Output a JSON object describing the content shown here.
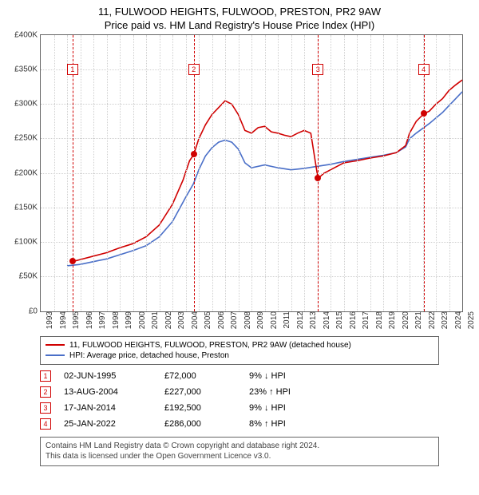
{
  "title": "11, FULWOOD HEIGHTS, FULWOOD, PRESTON, PR2 9AW",
  "subtitle": "Price paid vs. HM Land Registry's House Price Index (HPI)",
  "title_fontsize": 13,
  "colors": {
    "series_price": "#d00000",
    "series_hpi": "#4a6fc8",
    "grid": "#cfcfcf",
    "border": "#666666",
    "background": "#ffffff",
    "marker_fill": "#d00000",
    "marker_box_border": "#d00000",
    "footer_text": "#444444"
  },
  "chart": {
    "type": "line",
    "x_years": [
      1993,
      1994,
      1995,
      1996,
      1997,
      1998,
      1999,
      2000,
      2001,
      2002,
      2003,
      2004,
      2005,
      2006,
      2007,
      2008,
      2009,
      2010,
      2011,
      2012,
      2013,
      2014,
      2015,
      2016,
      2017,
      2018,
      2019,
      2020,
      2021,
      2022,
      2023,
      2024,
      2025
    ],
    "y_ticks": [
      0,
      50000,
      100000,
      150000,
      200000,
      250000,
      300000,
      350000,
      400000
    ],
    "y_tick_labels": [
      "£0",
      "£50K",
      "£100K",
      "£150K",
      "£200K",
      "£250K",
      "£300K",
      "£350K",
      "£400K"
    ],
    "ylim": [
      0,
      400000
    ],
    "line_width": 1.6,
    "grid_dotted": true,
    "series_price": {
      "label": "11, FULWOOD HEIGHTS, FULWOOD, PRESTON, PR2 9AW (detached house)",
      "color": "#d00000",
      "x": [
        1995.42,
        1996,
        1997,
        1998,
        1999,
        2000,
        2001,
        2002,
        2003,
        2003.8,
        2004.3,
        2004.62,
        2005,
        2005.5,
        2006,
        2006.5,
        2007,
        2007.5,
        2008,
        2008.5,
        2009,
        2009.5,
        2010,
        2010.5,
        2011,
        2011.5,
        2012,
        2012.5,
        2013,
        2013.5,
        2014.05,
        2014.5,
        2015,
        2016,
        2017,
        2018,
        2019,
        2020,
        2020.7,
        2021,
        2021.5,
        2022.07,
        2022.5,
        2023,
        2023.5,
        2024,
        2024.5,
        2025
      ],
      "y": [
        72000,
        75000,
        80000,
        85000,
        92000,
        98000,
        108000,
        125000,
        155000,
        190000,
        218000,
        227000,
        250000,
        270000,
        285000,
        295000,
        305000,
        300000,
        285000,
        262000,
        258000,
        266000,
        268000,
        260000,
        258000,
        255000,
        253000,
        258000,
        262000,
        258000,
        192500,
        200000,
        205000,
        215000,
        218000,
        222000,
        225000,
        230000,
        240000,
        258000,
        275000,
        286000,
        290000,
        300000,
        308000,
        320000,
        328000,
        335000
      ]
    },
    "series_hpi": {
      "label": "HPI: Average price, detached house, Preston",
      "color": "#4a6fc8",
      "x": [
        1995,
        1996,
        1997,
        1998,
        1999,
        2000,
        2001,
        2002,
        2003,
        2004,
        2004.6,
        2005,
        2005.5,
        2006,
        2006.5,
        2007,
        2007.5,
        2008,
        2008.5,
        2009,
        2010,
        2011,
        2012,
        2013,
        2014,
        2015,
        2016,
        2017,
        2018,
        2019,
        2020,
        2020.7,
        2021,
        2021.5,
        2022,
        2022.5,
        2023,
        2023.5,
        2024,
        2024.5,
        2025
      ],
      "y": [
        66000,
        68000,
        72000,
        76000,
        82000,
        88000,
        95000,
        108000,
        130000,
        165000,
        185000,
        205000,
        225000,
        237000,
        245000,
        248000,
        245000,
        235000,
        215000,
        208000,
        212000,
        208000,
        205000,
        207000,
        210000,
        213000,
        217000,
        220000,
        223000,
        226000,
        230000,
        238000,
        250000,
        258000,
        265000,
        272000,
        280000,
        288000,
        298000,
        308000,
        318000
      ]
    },
    "event_markers": [
      {
        "n": "1",
        "x_year": 1995.42,
        "box_y_value": 350000,
        "dot_y_value": 72000
      },
      {
        "n": "2",
        "x_year": 2004.62,
        "box_y_value": 350000,
        "dot_y_value": 227000
      },
      {
        "n": "3",
        "x_year": 2014.05,
        "box_y_value": 350000,
        "dot_y_value": 192500
      },
      {
        "n": "4",
        "x_year": 2022.07,
        "box_y_value": 350000,
        "dot_y_value": 286000
      }
    ]
  },
  "legend": [
    {
      "color": "#d00000",
      "label": "11, FULWOOD HEIGHTS, FULWOOD, PRESTON, PR2 9AW (detached house)"
    },
    {
      "color": "#4a6fc8",
      "label": "HPI: Average price, detached house, Preston"
    }
  ],
  "events": [
    {
      "n": "1",
      "date": "02-JUN-1995",
      "price": "£72,000",
      "delta": "9% ↓ HPI"
    },
    {
      "n": "2",
      "date": "13-AUG-2004",
      "price": "£227,000",
      "delta": "23% ↑ HPI"
    },
    {
      "n": "3",
      "date": "17-JAN-2014",
      "price": "£192,500",
      "delta": "9% ↓ HPI"
    },
    {
      "n": "4",
      "date": "25-JAN-2022",
      "price": "£286,000",
      "delta": "8% ↑ HPI"
    }
  ],
  "footer_line1": "Contains HM Land Registry data © Crown copyright and database right 2024.",
  "footer_line2": "This data is licensed under the Open Government Licence v3.0."
}
